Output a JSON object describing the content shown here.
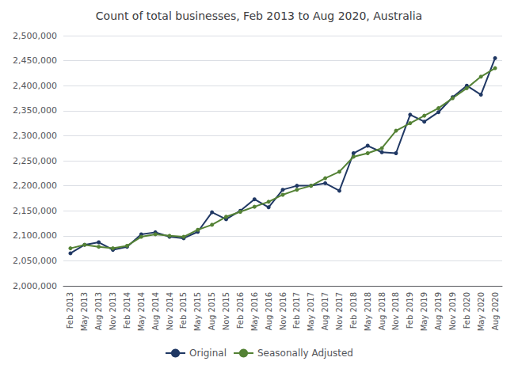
{
  "chart_data": {
    "type": "line",
    "title": "Count of total businesses, Feb 2013 to Aug 2020, Australia",
    "categories": [
      "Feb 2013",
      "May 2013",
      "Aug 2013",
      "Nov 2013",
      "Feb 2014",
      "May 2014",
      "Aug 2014",
      "Nov 2014",
      "Feb 2015",
      "May 2015",
      "Aug 2015",
      "Nov 2015",
      "Feb 2016",
      "May 2016",
      "Aug 2016",
      "Nov 2016",
      "Feb 2017",
      "May 2017",
      "Aug 2017",
      "Nov 2017",
      "Feb 2018",
      "May 2018",
      "Aug 2018",
      "Nov 2018",
      "Feb 2019",
      "May 2019",
      "Aug 2019",
      "Nov 2019",
      "Feb 2020",
      "May 2020",
      "Aug 2020"
    ],
    "series": [
      {
        "name": "Original",
        "color": "#203864",
        "marker": "circle",
        "values": [
          2065000,
          2082000,
          2087000,
          2072000,
          2078000,
          2103000,
          2107000,
          2098000,
          2095000,
          2108000,
          2147000,
          2133000,
          2150000,
          2173000,
          2157000,
          2192000,
          2200000,
          2200000,
          2205000,
          2190000,
          2265000,
          2280000,
          2267000,
          2265000,
          2342000,
          2328000,
          2347000,
          2377000,
          2400000,
          2382000,
          2455000
        ]
      },
      {
        "name": "Seasonally Adjusted",
        "color": "#548235",
        "marker": "circle",
        "values": [
          2075000,
          2082000,
          2078000,
          2075000,
          2080000,
          2098000,
          2103000,
          2100000,
          2098000,
          2112000,
          2122000,
          2138000,
          2148000,
          2158000,
          2168000,
          2182000,
          2192000,
          2200000,
          2215000,
          2228000,
          2258000,
          2265000,
          2275000,
          2310000,
          2325000,
          2340000,
          2355000,
          2375000,
          2395000,
          2418000,
          2435000
        ]
      }
    ],
    "ylim": [
      2000000,
      2500000
    ],
    "yticks": [
      {
        "value": 2000000,
        "label": "2,000,000"
      },
      {
        "value": 2050000,
        "label": "2,050,000"
      },
      {
        "value": 2100000,
        "label": "2,100,000"
      },
      {
        "value": 2150000,
        "label": "2,150,000"
      },
      {
        "value": 2200000,
        "label": "2,200,000"
      },
      {
        "value": 2250000,
        "label": "2,250,000"
      },
      {
        "value": 2300000,
        "label": "2,300,000"
      },
      {
        "value": 2350000,
        "label": "2,350,000"
      },
      {
        "value": 2400000,
        "label": "2,400,000"
      },
      {
        "value": 2450000,
        "label": "2,450,000"
      },
      {
        "value": 2500000,
        "label": "2,500,000"
      }
    ],
    "grid": true,
    "legend": "bottom"
  }
}
